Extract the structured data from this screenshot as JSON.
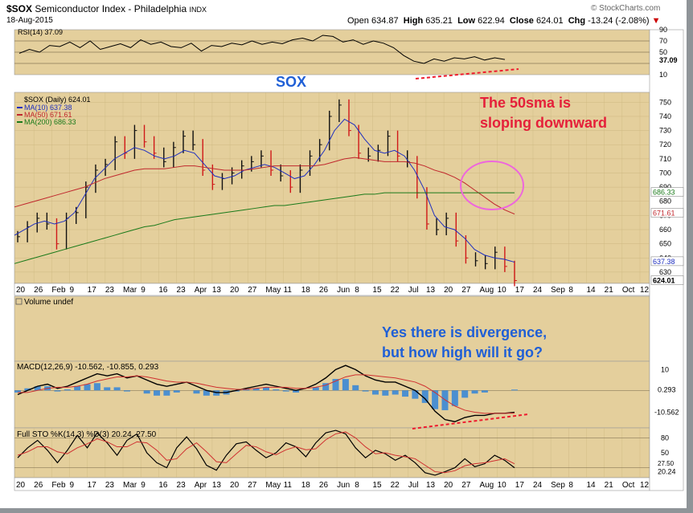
{
  "header": {
    "symbol": "$SOX",
    "name": "Semiconductor Index - Philadelphia",
    "exchange": "INDX",
    "date": "18-Aug-2015",
    "brand": "© StockCharts.com",
    "open_label": "Open",
    "open": "634.87",
    "high_label": "High",
    "high": "635.21",
    "low_label": "Low",
    "low": "622.94",
    "close_label": "Close",
    "close": "624.01",
    "chg_label": "Chg",
    "chg": "-13.24 (-2.08%)"
  },
  "annotations": {
    "sox": "SOX",
    "sma_line1": "The 50sma is",
    "sma_line2": "sloping downward",
    "div_line1": "Yes there is divergence,",
    "div_line2": "but how high will it go?"
  },
  "colors": {
    "panel_bg": "#e4cf9c",
    "ma10": "#1f2fbf",
    "ma50": "#c0272d",
    "ma200": "#1a7a1a",
    "bar": "#111111",
    "bar_red": "#d01818",
    "histogram": "#4b8fd0",
    "annotation_blue": "#1f5fd6",
    "annotation_red": "#e5203a",
    "circle": "#ee66dd",
    "dashed": "#ee1b2e"
  },
  "chart_data": [
    {
      "type": "line",
      "panel": "rsi",
      "title": "RSI(14) 37.09",
      "ticks": [
        "90",
        "70",
        "50",
        "37.09",
        "10"
      ],
      "ylim": [
        10,
        90
      ],
      "series": [
        {
          "name": "RSI(14)",
          "values": [
            48,
            55,
            50,
            62,
            60,
            68,
            58,
            70,
            55,
            60,
            65,
            58,
            72,
            64,
            68,
            60,
            58,
            66,
            52,
            62,
            60,
            66,
            63,
            70,
            64,
            68,
            65,
            72,
            75,
            70,
            80,
            78,
            68,
            72,
            64,
            70,
            66,
            58,
            44,
            34,
            30,
            38,
            34,
            40,
            38,
            42,
            36,
            40,
            37
          ]
        }
      ]
    },
    {
      "type": "candlestick",
      "panel": "price",
      "title": "$SOX (Daily) 624.01",
      "x_tick_labels": [
        "20",
        "26",
        "Feb",
        "9",
        "17",
        "23",
        "Mar",
        "9",
        "16",
        "23",
        "Apr",
        "13",
        "20",
        "27",
        "May",
        "11",
        "18",
        "26",
        "Jun",
        "8",
        "15",
        "22",
        "Jul",
        "13",
        "20",
        "27",
        "Aug",
        "10",
        "17",
        "24",
        "Sep",
        "8",
        "14",
        "21",
        "Oct",
        "12"
      ],
      "y_ticks": [
        750,
        740,
        730,
        720,
        710,
        700,
        690,
        680,
        670,
        660,
        650,
        640,
        630
      ],
      "ylim": [
        622,
        757
      ],
      "close_values": [
        655,
        662,
        668,
        664,
        650,
        668,
        672,
        690,
        702,
        706,
        722,
        714,
        730,
        722,
        714,
        708,
        718,
        726,
        720,
        702,
        692,
        696,
        700,
        705,
        708,
        712,
        702,
        698,
        690,
        702,
        712,
        720,
        740,
        748,
        730,
        714,
        712,
        716,
        726,
        712,
        708,
        686,
        664,
        660,
        668,
        652,
        640,
        638,
        636,
        644,
        634,
        624
      ],
      "legend": [
        {
          "name": "MA(10) 637.38",
          "color": "#1f2fbf"
        },
        {
          "name": "MA(50) 671.61",
          "color": "#c0272d"
        },
        {
          "name": "MA(200) 686.33",
          "color": "#1a7a1a"
        }
      ],
      "series": [
        {
          "name": "MA(10)",
          "values": [
            656,
            660,
            664,
            666,
            664,
            666,
            672,
            684,
            696,
            703,
            710,
            714,
            718,
            716,
            712,
            710,
            712,
            716,
            714,
            706,
            698,
            696,
            698,
            702,
            704,
            706,
            704,
            700,
            696,
            698,
            706,
            716,
            730,
            738,
            734,
            724,
            716,
            714,
            716,
            712,
            702,
            688,
            670,
            662,
            660,
            654,
            646,
            642,
            640,
            639,
            637
          ]
        },
        {
          "name": "MA(50)",
          "values": [
            676,
            678,
            680,
            682,
            684,
            686,
            688,
            690,
            693,
            696,
            698,
            700,
            702,
            703,
            703,
            703,
            704,
            705,
            705,
            704,
            703,
            702,
            702,
            702,
            703,
            704,
            705,
            705,
            705,
            705,
            705,
            706,
            708,
            710,
            711,
            710,
            709,
            708,
            708,
            708,
            707,
            705,
            702,
            700,
            697,
            693,
            688,
            683,
            678,
            674,
            671
          ]
        },
        {
          "name": "MA(200)",
          "values": [
            636,
            638,
            640,
            642,
            644,
            646,
            648,
            650,
            652,
            654,
            656,
            658,
            660,
            662,
            663,
            665,
            667,
            668,
            669,
            670,
            671,
            672,
            673,
            674,
            675,
            676,
            677,
            677,
            678,
            679,
            680,
            681,
            682,
            683,
            684,
            685,
            685,
            686,
            686,
            686,
            686,
            686,
            686,
            686,
            686,
            686,
            686,
            686,
            686,
            686,
            686
          ]
        }
      ],
      "last_labels": [
        "686.33",
        "671.61",
        "637.38",
        "624.01"
      ]
    },
    {
      "type": "bar",
      "panel": "volume",
      "title": "Volume undef"
    },
    {
      "type": "line",
      "panel": "macd",
      "title": "MACD(12,26,9) -10.562, -10.855, 0.293",
      "ticks": [
        "10",
        "0.293",
        "-10.562"
      ],
      "ylim": [
        -18,
        14
      ],
      "series": [
        {
          "name": "MACD",
          "values": [
            -2,
            0,
            2,
            3,
            1,
            2,
            4,
            6,
            8,
            7,
            8,
            6,
            7,
            5,
            3,
            2,
            3,
            4,
            2,
            0,
            -1,
            -1,
            0,
            1,
            2,
            3,
            2,
            1,
            0,
            1,
            3,
            6,
            10,
            12,
            10,
            7,
            5,
            4,
            4,
            2,
            0,
            -4,
            -10,
            -14,
            -15,
            -13,
            -12,
            -12,
            -11,
            -11,
            -10.5
          ]
        },
        {
          "name": "Signal",
          "values": [
            -1,
            -1,
            0,
            1,
            1.5,
            1.5,
            2,
            3,
            4.5,
            5.5,
            6.5,
            6.5,
            7,
            6.5,
            5.5,
            4.5,
            4,
            4,
            3.5,
            2.5,
            1.5,
            1,
            0.5,
            0.5,
            1,
            1.5,
            1.5,
            1.5,
            1,
            1,
            1.5,
            2.5,
            4.5,
            6.5,
            7.5,
            7.5,
            7,
            6.5,
            6,
            5,
            4,
            2,
            -1,
            -4.5,
            -7.5,
            -9.5,
            -10.5,
            -11,
            -11,
            -11,
            -10.9
          ]
        }
      ]
    },
    {
      "type": "line",
      "panel": "stochastic",
      "title": "Full STO %K(14,3) %D(3) 20.24, 27.50",
      "ticks": [
        "80",
        "50",
        "27.50",
        "20.24"
      ],
      "ylim": [
        0,
        100
      ],
      "series": [
        {
          "name": "%K(14,3)",
          "values": [
            40,
            60,
            75,
            55,
            30,
            55,
            85,
            60,
            90,
            70,
            45,
            75,
            88,
            50,
            30,
            20,
            60,
            82,
            58,
            25,
            15,
            45,
            68,
            72,
            55,
            40,
            50,
            70,
            62,
            42,
            70,
            90,
            95,
            88,
            60,
            40,
            55,
            48,
            35,
            45,
            30,
            10,
            5,
            12,
            20,
            38,
            22,
            28,
            45,
            35,
            20
          ]
        },
        {
          "name": "%D(3)",
          "values": [
            45,
            52,
            62,
            62,
            52,
            48,
            60,
            68,
            78,
            72,
            62,
            62,
            72,
            70,
            55,
            35,
            38,
            58,
            70,
            52,
            32,
            30,
            48,
            65,
            62,
            52,
            46,
            56,
            62,
            56,
            58,
            76,
            88,
            92,
            80,
            62,
            48,
            50,
            45,
            42,
            38,
            25,
            12,
            10,
            14,
            24,
            28,
            30,
            34,
            38,
            28
          ]
        }
      ]
    }
  ]
}
